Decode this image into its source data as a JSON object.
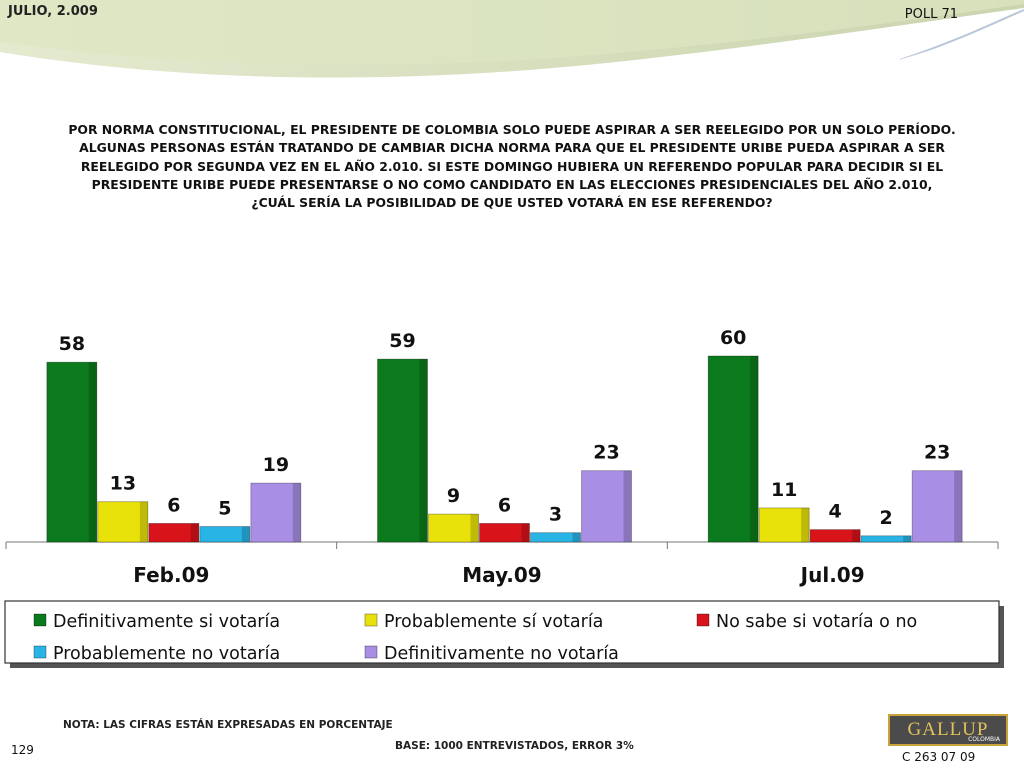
{
  "header": {
    "date": "JULIO, 2.009",
    "poll": "POLL 71"
  },
  "question": {
    "line1": "POR NORMA CONSTITUCIONAL, EL PRESIDENTE DE COLOMBIA SOLO PUEDE ASPIRAR A SER REELEGIDO POR UN SOLO PERÍODO.",
    "line2": "ALGUNAS PERSONAS ESTÁN TRATANDO DE CAMBIAR DICHA NORMA PARA QUE EL PRESIDENTE URIBE PUEDA ASPIRAR A SER",
    "line3": "REELEGIDO POR SEGUNDA VEZ EN EL AÑO 2.010. SI ESTE DOMINGO HUBIERA UN REFERENDO POPULAR PARA DECIDIR SI EL",
    "line4": "PRESIDENTE URIBE PUEDE PRESENTARSE O NO COMO CANDIDATO EN LAS ELECCIONES PRESIDENCIALES DEL AÑO 2.010,",
    "line5": "¿CUÁL SERÍA LA POSIBILIDAD DE QUE USTED VOTARÁ EN ESE REFERENDO?"
  },
  "footer": {
    "note": "NOTA: LAS CIFRAS ESTÁN EXPRESADAS EN PORCENTAJE",
    "base": "BASE: 1000 ENTREVISTADOS, ERROR 3%",
    "page": "129",
    "logo": "GALLUP",
    "logo_sub": "COLOMBIA",
    "code": "C 263 07 09"
  },
  "colors": {
    "background_top": "#d7e1b7",
    "series": [
      "#0b7a1c",
      "#e9e20a",
      "#d8131a",
      "#29b4e6",
      "#a98ee6"
    ]
  },
  "chart_data": {
    "type": "bar",
    "categories": [
      "Feb.09",
      "May.09",
      "Jul.09"
    ],
    "series": [
      {
        "name": "Definitivamente si votaría",
        "values": [
          58,
          59,
          60
        ]
      },
      {
        "name": "Probablemente sí votaría",
        "values": [
          13,
          9,
          11
        ]
      },
      {
        "name": "No sabe si votaría o no",
        "values": [
          6,
          6,
          4
        ]
      },
      {
        "name": "Probablemente no votaría",
        "values": [
          5,
          3,
          2
        ]
      },
      {
        "name": "Definitivamente no votaría",
        "values": [
          19,
          23,
          23
        ]
      }
    ],
    "data_labels": true,
    "unit": "%",
    "ylim": [
      0,
      60
    ],
    "legend_position": "bottom"
  }
}
